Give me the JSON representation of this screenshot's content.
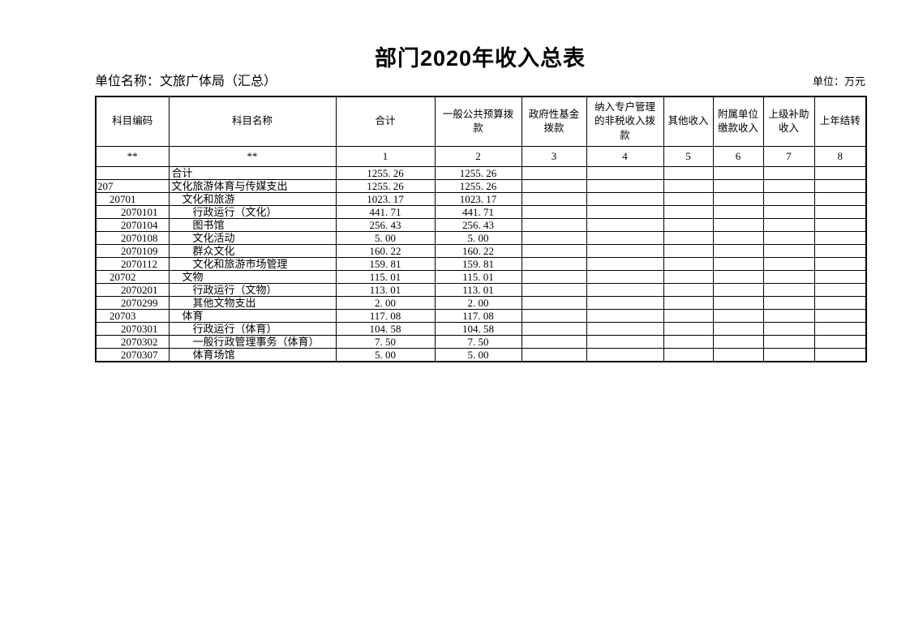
{
  "page": {
    "title": "部门2020年收入总表",
    "unit_name": "单位名称：文旅广体局（汇总）",
    "unit_measure": "单位：万元"
  },
  "table": {
    "columns": [
      {
        "label": "科目编码",
        "num": "**"
      },
      {
        "label": "科目名称",
        "num": "**"
      },
      {
        "label": "合计",
        "num": "1"
      },
      {
        "label": "一般公共预算拨\n款",
        "num": "2"
      },
      {
        "label": "政府性基金\n拨款",
        "num": "3"
      },
      {
        "label": "纳入专户管理\n的非税收入拨\n款",
        "num": "4"
      },
      {
        "label": "其他收入",
        "num": "5"
      },
      {
        "label": "附属单位\n缴款收入",
        "num": "6"
      },
      {
        "label": "上级补助\n收入",
        "num": "7"
      },
      {
        "label": "上年结转",
        "num": "8"
      }
    ],
    "rows": [
      {
        "code": "",
        "code_indent": 0,
        "name": "合计",
        "name_indent": 0,
        "values": [
          "1255. 26",
          "1255. 26",
          "",
          "",
          "",
          "",
          "",
          ""
        ]
      },
      {
        "code": "207",
        "code_indent": 0,
        "name": "文化旅游体育与传媒支出",
        "name_indent": 0,
        "values": [
          "1255. 26",
          "1255. 26",
          "",
          "",
          "",
          "",
          "",
          ""
        ]
      },
      {
        "code": "20701",
        "code_indent": 1,
        "name": "文化和旅游",
        "name_indent": 1,
        "values": [
          "1023. 17",
          "1023. 17",
          "",
          "",
          "",
          "",
          "",
          ""
        ]
      },
      {
        "code": "2070101",
        "code_indent": 2,
        "name": "行政运行（文化）",
        "name_indent": 2,
        "values": [
          "441. 71",
          "441. 71",
          "",
          "",
          "",
          "",
          "",
          ""
        ]
      },
      {
        "code": "2070104",
        "code_indent": 2,
        "name": "图书馆",
        "name_indent": 2,
        "values": [
          "256. 43",
          "256. 43",
          "",
          "",
          "",
          "",
          "",
          ""
        ]
      },
      {
        "code": "2070108",
        "code_indent": 2,
        "name": "文化活动",
        "name_indent": 2,
        "values": [
          "5. 00",
          "5. 00",
          "",
          "",
          "",
          "",
          "",
          ""
        ]
      },
      {
        "code": "2070109",
        "code_indent": 2,
        "name": "群众文化",
        "name_indent": 2,
        "values": [
          "160. 22",
          "160. 22",
          "",
          "",
          "",
          "",
          "",
          ""
        ]
      },
      {
        "code": "2070112",
        "code_indent": 2,
        "name": "文化和旅游市场管理",
        "name_indent": 2,
        "values": [
          "159. 81",
          "159. 81",
          "",
          "",
          "",
          "",
          "",
          ""
        ]
      },
      {
        "code": "20702",
        "code_indent": 1,
        "name": "文物",
        "name_indent": 1,
        "values": [
          "115. 01",
          "115. 01",
          "",
          "",
          "",
          "",
          "",
          ""
        ]
      },
      {
        "code": "2070201",
        "code_indent": 2,
        "name": "行政运行（文物）",
        "name_indent": 2,
        "values": [
          "113. 01",
          "113. 01",
          "",
          "",
          "",
          "",
          "",
          ""
        ]
      },
      {
        "code": "2070299",
        "code_indent": 2,
        "name": "其他文物支出",
        "name_indent": 2,
        "values": [
          "2. 00",
          "2. 00",
          "",
          "",
          "",
          "",
          "",
          ""
        ]
      },
      {
        "code": "20703",
        "code_indent": 1,
        "name": "体育",
        "name_indent": 1,
        "values": [
          "117. 08",
          "117. 08",
          "",
          "",
          "",
          "",
          "",
          ""
        ]
      },
      {
        "code": "2070301",
        "code_indent": 2,
        "name": "行政运行（体育）",
        "name_indent": 2,
        "values": [
          "104. 58",
          "104. 58",
          "",
          "",
          "",
          "",
          "",
          ""
        ]
      },
      {
        "code": "2070302",
        "code_indent": 2,
        "name": "一般行政管理事务（体育）",
        "name_indent": 2,
        "values": [
          "7. 50",
          "7. 50",
          "",
          "",
          "",
          "",
          "",
          ""
        ]
      },
      {
        "code": "2070307",
        "code_indent": 2,
        "name": "体育场馆",
        "name_indent": 2,
        "values": [
          "5. 00",
          "5. 00",
          "",
          "",
          "",
          "",
          "",
          ""
        ]
      }
    ]
  }
}
